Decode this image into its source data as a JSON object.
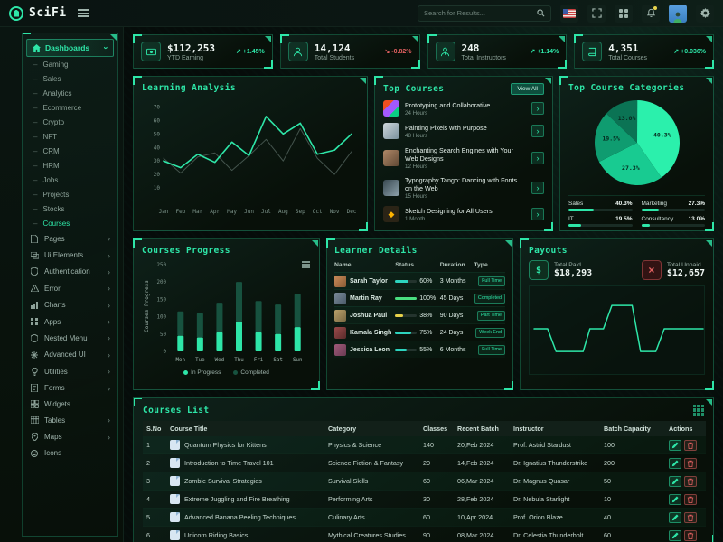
{
  "navbar": {
    "logo": "SciFi",
    "search_placeholder": "Search for Results...",
    "icons": [
      "us-flag",
      "fullscreen-icon",
      "apps-grid-icon",
      "notifications-bell-icon",
      "user-avatar",
      "settings-gear-icon"
    ]
  },
  "sidebar": {
    "group_label": "Dashboards",
    "group_items": [
      "Gaming",
      "Sales",
      "Analytics",
      "Ecommerce",
      "Crypto",
      "NFT",
      "CRM",
      "HRM",
      "Jobs",
      "Projects",
      "Stocks",
      "Courses"
    ],
    "active_item": "Courses",
    "menu": [
      {
        "label": "Pages",
        "icon": "doc",
        "arrow": true
      },
      {
        "label": "Ui Elements",
        "icon": "layers",
        "arrow": true
      },
      {
        "label": "Authentication",
        "icon": "shield",
        "arrow": true
      },
      {
        "label": "Error",
        "icon": "warning",
        "arrow": true
      },
      {
        "label": "Charts",
        "icon": "chart",
        "arrow": true
      },
      {
        "label": "Apps",
        "icon": "grid",
        "arrow": true
      },
      {
        "label": "Nested Menu",
        "icon": "hexagon",
        "arrow": true
      },
      {
        "label": "Advanced UI",
        "icon": "asterisk",
        "arrow": true
      },
      {
        "label": "Utilities",
        "icon": "bulb",
        "arrow": true
      },
      {
        "label": "Forms",
        "icon": "form",
        "arrow": true
      },
      {
        "label": "Widgets",
        "icon": "widget",
        "arrow": false
      },
      {
        "label": "Tables",
        "icon": "table",
        "arrow": true
      },
      {
        "label": "Maps",
        "icon": "map",
        "arrow": true
      },
      {
        "label": "Icons",
        "icon": "smile",
        "arrow": false
      }
    ]
  },
  "stats": [
    {
      "value": "$112,253",
      "label": "YTD Earning",
      "trend": "+1.45%",
      "direction": "up",
      "icon": "dollar"
    },
    {
      "value": "14,124",
      "label": "Total Students",
      "trend": "-0.82%",
      "direction": "down",
      "icon": "student"
    },
    {
      "value": "248",
      "label": "Total Instructors",
      "trend": "+1.14%",
      "direction": "up",
      "icon": "instructor"
    },
    {
      "value": "4,351",
      "label": "Total Courses",
      "trend": "+0.036%",
      "direction": "up",
      "icon": "book"
    }
  ],
  "panels": {
    "learning_analysis": "Learning Analysis",
    "top_courses": "Top Courses",
    "view_all": "View All",
    "categories": "Top Course Categories",
    "courses_progress": "Courses Progress",
    "learner_details": "Learner Details",
    "payouts": "Payouts",
    "courses_list": "Courses List"
  },
  "chart_data": [
    {
      "id": "learning_analysis",
      "type": "line",
      "title": "Learning Analysis",
      "x": [
        "Jan",
        "Feb",
        "Mar",
        "Apr",
        "May",
        "Jun",
        "Jul",
        "Aug",
        "Sep",
        "Oct",
        "Nov",
        "Dec"
      ],
      "series": [
        {
          "name": "Current",
          "color": "#2ee6a8",
          "values": [
            30,
            25,
            35,
            29,
            44,
            34,
            63,
            50,
            58,
            35,
            38,
            50
          ]
        },
        {
          "name": "Previous",
          "color": "#44544d",
          "values": [
            32,
            21,
            33,
            36,
            23,
            34,
            46,
            30,
            54,
            32,
            20,
            37
          ]
        }
      ],
      "ylim": [
        0,
        75
      ],
      "y_ticks": [
        10,
        20,
        30,
        40,
        50,
        60,
        70
      ],
      "grid": false,
      "legend_position": "none"
    },
    {
      "id": "top_course_categories",
      "type": "pie",
      "title": "Top Course Categories",
      "slices": [
        {
          "label": "Sales",
          "pct": 40.3,
          "color": "#2bf0ac"
        },
        {
          "label": "Marketing",
          "pct": 27.3,
          "color": "#18cb91"
        },
        {
          "label": "IT",
          "pct": 19.5,
          "color": "#0f9c70"
        },
        {
          "label": "Consultancy",
          "pct": 13.0,
          "color": "#0b7354"
        }
      ]
    },
    {
      "id": "courses_progress",
      "type": "stacked_bar",
      "title": "Courses Progress",
      "ylabel": "Courses Progress",
      "categories": [
        "Mon",
        "Tue",
        "Wed",
        "Thu",
        "Fri",
        "Sat",
        "Sun"
      ],
      "series": [
        {
          "name": "In Progress",
          "color": "#2ee6a8",
          "values": [
            45,
            40,
            55,
            85,
            55,
            50,
            70
          ]
        },
        {
          "name": "Completed",
          "color": "#17523f",
          "values": [
            70,
            70,
            85,
            115,
            90,
            85,
            95
          ]
        }
      ],
      "ylim": [
        0,
        260
      ],
      "y_ticks": [
        0,
        50,
        100,
        150,
        200,
        250
      ],
      "legend_position": "bottom"
    },
    {
      "id": "payouts",
      "type": "step_line",
      "color": "#2ee6a8",
      "points": [
        [
          0,
          50
        ],
        [
          8,
          50
        ],
        [
          13,
          16
        ],
        [
          29,
          16
        ],
        [
          33,
          50
        ],
        [
          41,
          50
        ],
        [
          46,
          85
        ],
        [
          58,
          85
        ],
        [
          63,
          16
        ],
        [
          72,
          16
        ],
        [
          77,
          50
        ],
        [
          100,
          50
        ]
      ],
      "ylim": [
        0,
        100
      ]
    }
  ],
  "top_courses": {
    "items": [
      {
        "title": "Prototyping and Collaborative",
        "duration": "24 Hours",
        "thumb": "figma"
      },
      {
        "title": "Painting Pixels with Purpose",
        "duration": "48 Hours",
        "thumb": "photo1"
      },
      {
        "title": "Enchanting Search Engines with Your Web Designs",
        "duration": "12 Hours",
        "thumb": "photo2"
      },
      {
        "title": "Typography Tango: Dancing with Fonts on the Web",
        "duration": "15 Hours",
        "thumb": "photo3"
      },
      {
        "title": "Sketch Designing for All Users",
        "duration": "1 Month",
        "thumb": "sketch"
      }
    ]
  },
  "learner_details": {
    "headers": [
      "Name",
      "Status",
      "Duration",
      "Type"
    ],
    "rows": [
      {
        "name": "Sarah Taylor",
        "status_pct": 60,
        "status_label": "60%",
        "bar_color": "#2dd4bf",
        "duration": "3 Months",
        "type": "Full Time"
      },
      {
        "name": "Martin Ray",
        "status_pct": 100,
        "status_label": "100%",
        "bar_color": "#4ade80",
        "duration": "45 Days",
        "type": "Completed"
      },
      {
        "name": "Joshua Paul",
        "status_pct": 38,
        "status_label": "38%",
        "bar_color": "#e7d24a",
        "duration": "90 Days",
        "type": "Part Time"
      },
      {
        "name": "Kamala Singh",
        "status_pct": 75,
        "status_label": "75%",
        "bar_color": "#2dd4bf",
        "duration": "24 Days",
        "type": "Week End"
      },
      {
        "name": "Jessica Leon",
        "status_pct": 55,
        "status_label": "55%",
        "bar_color": "#2dd4bf",
        "duration": "6 Months",
        "type": "Full Time"
      }
    ]
  },
  "payouts": {
    "paid_label": "Total Paid",
    "paid_value": "$18,293",
    "unpaid_label": "Total Unpaid",
    "unpaid_value": "$12,657"
  },
  "courses_list": {
    "headers": [
      "S.No",
      "Course Title",
      "Category",
      "Classes",
      "Recent Batch",
      "Instructor",
      "Batch Capacity",
      "Actions"
    ],
    "rows": [
      {
        "sno": "1",
        "title": "Quantum Physics for Kittens",
        "category": "Physics & Science",
        "classes": "140",
        "batch": "20,Feb 2024",
        "instructor": "Prof. Astrid Stardust",
        "capacity": "100"
      },
      {
        "sno": "2",
        "title": "Introduction to Time Travel 101",
        "category": "Science Fiction & Fantasy",
        "classes": "20",
        "batch": "14,Feb 2024",
        "instructor": "Dr. Ignatius Thunderstrike",
        "capacity": "200"
      },
      {
        "sno": "3",
        "title": "Zombie Survival Strategies",
        "category": "Survival Skills",
        "classes": "60",
        "batch": "06,Mar 2024",
        "instructor": "Dr. Magnus Quasar",
        "capacity": "50"
      },
      {
        "sno": "4",
        "title": "Extreme Juggling and Fire Breathing",
        "category": "Performing Arts",
        "classes": "30",
        "batch": "28,Feb 2024",
        "instructor": "Dr. Nebula Starlight",
        "capacity": "10"
      },
      {
        "sno": "5",
        "title": "Advanced Banana Peeling Techniques",
        "category": "Culinary Arts",
        "classes": "60",
        "batch": "10,Apr 2024",
        "instructor": "Prof. Orion Blaze",
        "capacity": "40"
      },
      {
        "sno": "6",
        "title": "Unicorn Riding Basics",
        "category": "Mythical Creatures Studies",
        "classes": "90",
        "batch": "08,Mar 2024",
        "instructor": "Dr. Celestia Thunderbolt",
        "capacity": "60"
      }
    ]
  },
  "colors": {
    "accent": "#2ee6a8",
    "danger": "#e06060",
    "warning": "#e7d24a"
  }
}
